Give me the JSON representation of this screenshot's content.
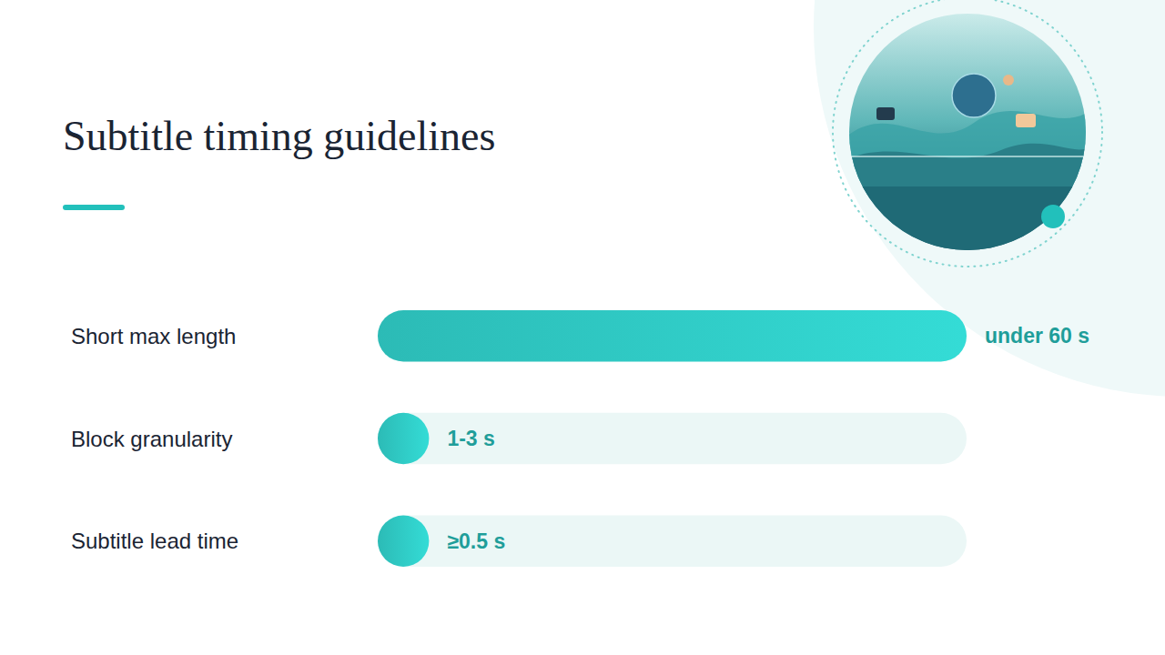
{
  "chart_data": {
    "type": "bar",
    "title": "Subtitle timing guidelines",
    "orientation": "horizontal",
    "categories": [
      "Short max length",
      "Block granularity",
      "Subtitle lead time"
    ],
    "values": [
      60,
      3,
      0.5
    ],
    "value_labels": [
      "under 60 s",
      "1-3 s",
      "≥0.5 s"
    ],
    "data_labels": true,
    "xlim": [
      0,
      60
    ],
    "tick_labels": false,
    "grid": false,
    "color": "#2ec2bd"
  }
}
